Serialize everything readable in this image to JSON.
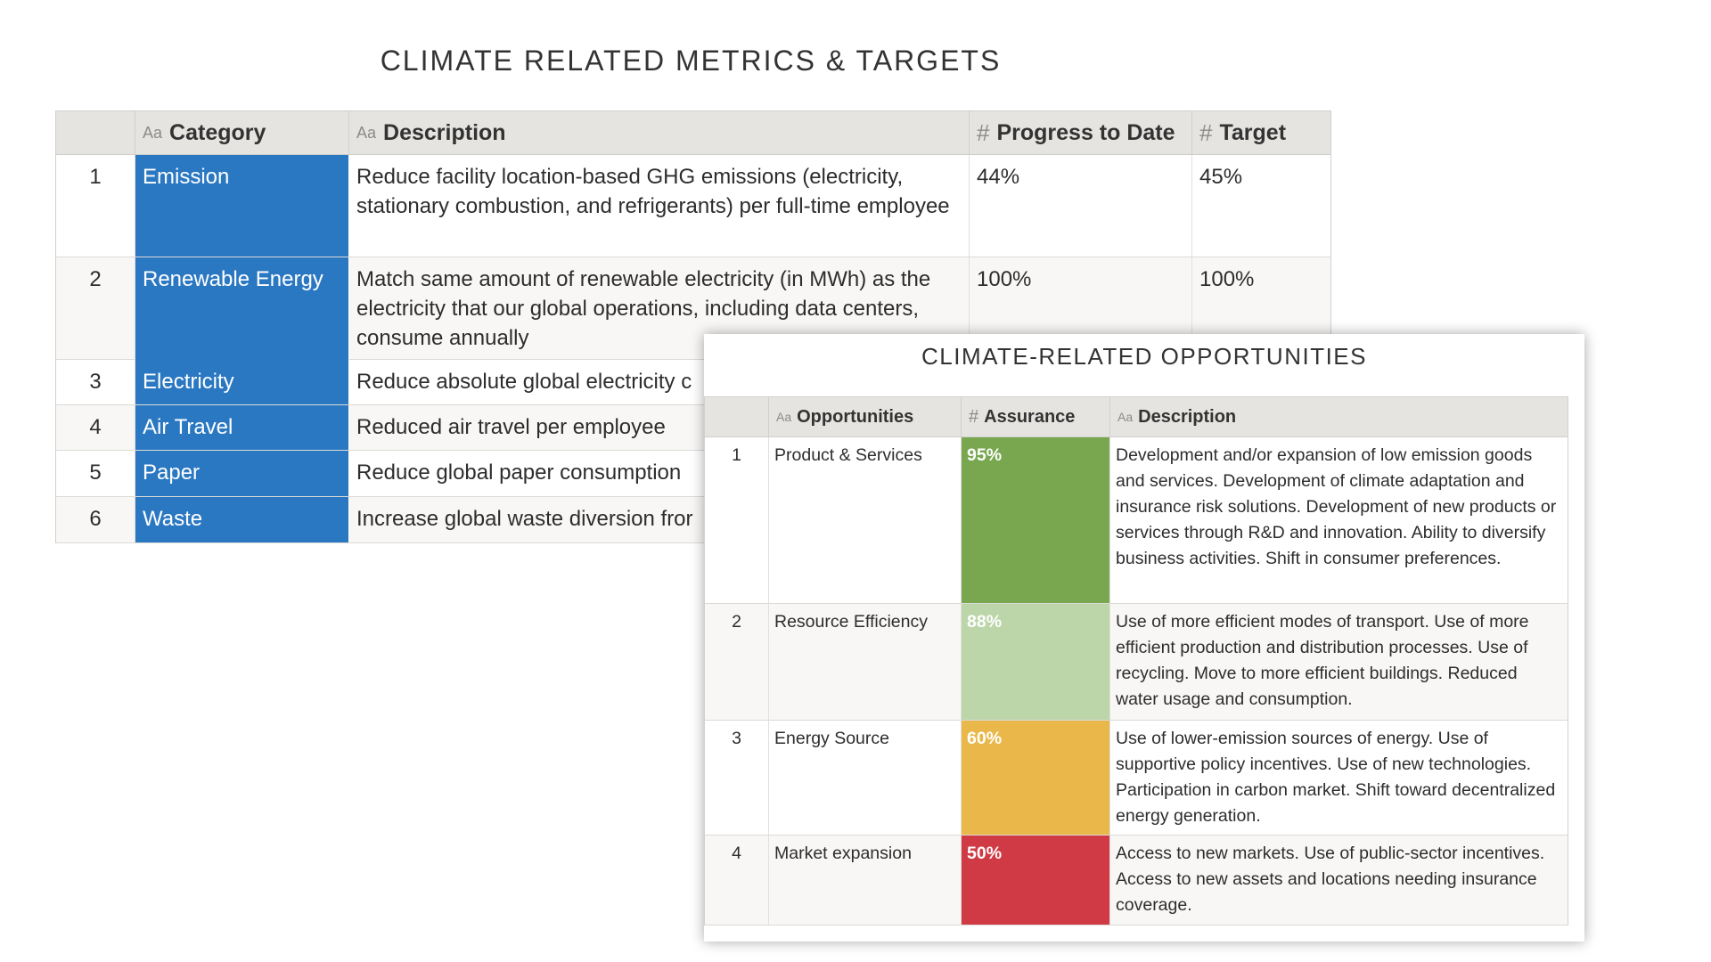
{
  "metrics": {
    "title": "CLIMATE RELATED METRICS & TARGETS",
    "headers": {
      "category": "Category",
      "description": "Description",
      "progress": "Progress to Date",
      "target": "Target"
    },
    "rows": [
      {
        "num": "1",
        "category": "Emission",
        "description": "Reduce facility location-based GHG emissions (electricity, stationary combustion, and refrigerants) per full-time employee",
        "progress": "44%",
        "target": "45%"
      },
      {
        "num": "2",
        "category": "Renewable Energy",
        "description": "Match same amount of renewable electricity (in MWh) as the electricity that our global operations, including data centers, consume annually",
        "progress": "100%",
        "target": "100%"
      },
      {
        "num": "3",
        "category": "Electricity",
        "description": "Reduce absolute global electricity c",
        "progress": "",
        "target": ""
      },
      {
        "num": "4",
        "category": "Air Travel",
        "description": "Reduced air travel per employee",
        "progress": "",
        "target": ""
      },
      {
        "num": "5",
        "category": "Paper",
        "description": "Reduce global paper consumption",
        "progress": "",
        "target": ""
      },
      {
        "num": "6",
        "category": "Waste",
        "description": "Increase global waste diversion fror",
        "progress": "",
        "target": ""
      }
    ]
  },
  "opportunities": {
    "title": "CLIMATE-RELATED OPPORTUNITIES",
    "headers": {
      "opportunities": "Opportunities",
      "assurance": "Assurance",
      "description": "Description"
    },
    "rows": [
      {
        "num": "1",
        "opportunity": "Product & Services",
        "assurance": "95%",
        "color": "#78a74f",
        "description": "Development and/or expansion of low emission goods and services. Development of climate adaptation and insurance risk solutions. Development of new products or services through R&D and innovation. Ability to diversify business activities. Shift in consumer preferences."
      },
      {
        "num": "2",
        "opportunity": "Resource Efficiency",
        "assurance": "88%",
        "color": "#bcd5a9",
        "description": "Use of more efficient modes of transport. Use of more efficient production and distribution processes. Use of recycling. Move to more efficient buildings. Reduced water usage and consumption."
      },
      {
        "num": "3",
        "opportunity": "Energy Source",
        "assurance": "60%",
        "color": "#eab84a",
        "description": "Use of lower-emission sources of energy. Use of supportive policy incentives. Use of new technologies. Participation in carbon market. Shift toward decentralized energy generation."
      },
      {
        "num": "4",
        "opportunity": "Market expansion",
        "assurance": "50%",
        "color": "#cf3a45",
        "description": "Access to new markets. Use of public-sector incentives. Access to new assets and locations needing insurance coverage."
      }
    ]
  },
  "icons": {
    "text_type": "Aa",
    "number_type": "#"
  }
}
